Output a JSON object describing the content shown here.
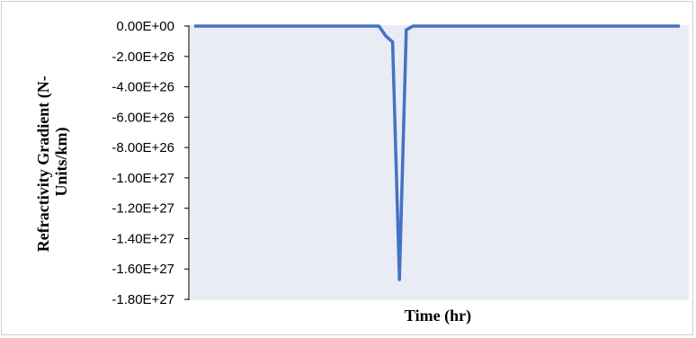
{
  "chart_data": {
    "type": "line",
    "title": "",
    "xlabel": "Time (hr)",
    "ylabel_lines": [
      "Refractivity Gradient (N-",
      "Units/km)"
    ],
    "ylim": [
      -1.8e+27,
      0
    ],
    "y_ticks": [
      "0.00E+00",
      "-2.00E+26",
      "-4.00E+26",
      "-6.00E+26",
      "-8.00E+26",
      "-1.00E+27",
      "-1.20E+27",
      "-1.40E+27",
      "-1.60E+27",
      "-1.80E+27"
    ],
    "y_tick_values": [
      0,
      -2e+26,
      -4e+26,
      -6e+26,
      -8e+26,
      -1e+27,
      -1.2e+27,
      -1.4e+27,
      -1.6e+27,
      -1.8e+27
    ],
    "grid": false,
    "x_tick_labels_shown": false,
    "colors": {
      "line": "#4472c4",
      "plot_background": "#e9ebf5",
      "axis": "#000000"
    },
    "series": [
      {
        "x": [
          1,
          2,
          3,
          4,
          5,
          6,
          7,
          8,
          9,
          10,
          11,
          12,
          13,
          14,
          15,
          16,
          17,
          18,
          19,
          20,
          21,
          22,
          23,
          24,
          25,
          26,
          27,
          28,
          29,
          30,
          31,
          32,
          33,
          34,
          35,
          36,
          37,
          38,
          39,
          40,
          41,
          42,
          43,
          44,
          45,
          46,
          47,
          48,
          49,
          50,
          51,
          52,
          53,
          54,
          55,
          56,
          57,
          58,
          59,
          60,
          61,
          62,
          63,
          64,
          65,
          66,
          67,
          68,
          69,
          70,
          71,
          72
        ],
        "values": [
          0,
          0,
          0,
          0,
          0,
          0,
          0,
          0,
          0,
          0,
          0,
          0,
          0,
          0,
          0,
          0,
          0,
          0,
          0,
          0,
          0,
          0,
          0,
          0,
          0,
          0,
          0,
          0,
          -6.5e+25,
          -1.05e+26,
          -1.67e+27,
          -2.5e+25,
          0,
          0,
          0,
          0,
          0,
          0,
          0,
          0,
          0,
          0,
          0,
          0,
          0,
          0,
          0,
          0,
          0,
          0,
          0,
          0,
          0,
          0,
          0,
          0,
          0,
          0,
          0,
          0,
          0,
          0,
          0,
          0,
          0,
          0,
          0,
          0,
          0,
          0,
          0,
          0
        ]
      }
    ]
  }
}
